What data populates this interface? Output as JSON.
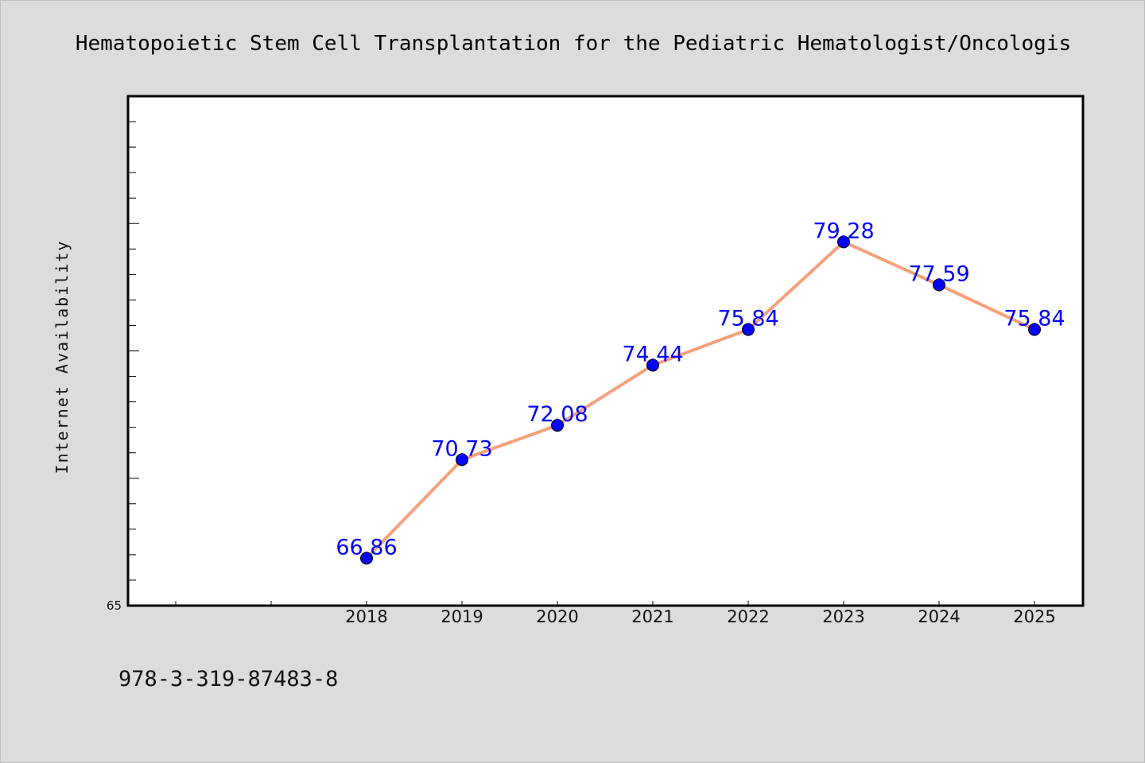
{
  "chart_data": {
    "type": "line",
    "title": "Hematopoietic Stem Cell Transplantation for the Pediatric Hematologist/Oncologis",
    "ylabel": "Internet Availability",
    "xlabel": "",
    "x": [
      "",
      "",
      "2018",
      "2019",
      "2020",
      "2021",
      "2022",
      "2023",
      "2024",
      "2025"
    ],
    "series": [
      {
        "values": [
          null,
          null,
          66.86,
          70.73,
          72.08,
          74.44,
          75.84,
          79.28,
          77.59,
          75.84
        ],
        "line_color": "#f4a07a",
        "marker_color": "#0000ff"
      }
    ],
    "data_labels": [
      "66.86",
      "70.73",
      "72.08",
      "74.44",
      "75.84",
      "79.28",
      "77.59",
      "75.84"
    ],
    "ylim": [
      65,
      85
    ],
    "y_tick_labels": [
      "65"
    ],
    "grid": false,
    "legend": "none"
  },
  "footer": {
    "isbn": "978-3-319-87483-8"
  },
  "colors": {
    "background": "#dcdcdc",
    "plot_background": "#ffffff",
    "line": "#f4a07a",
    "marker": "#0000ff",
    "label": "#0000ff"
  }
}
